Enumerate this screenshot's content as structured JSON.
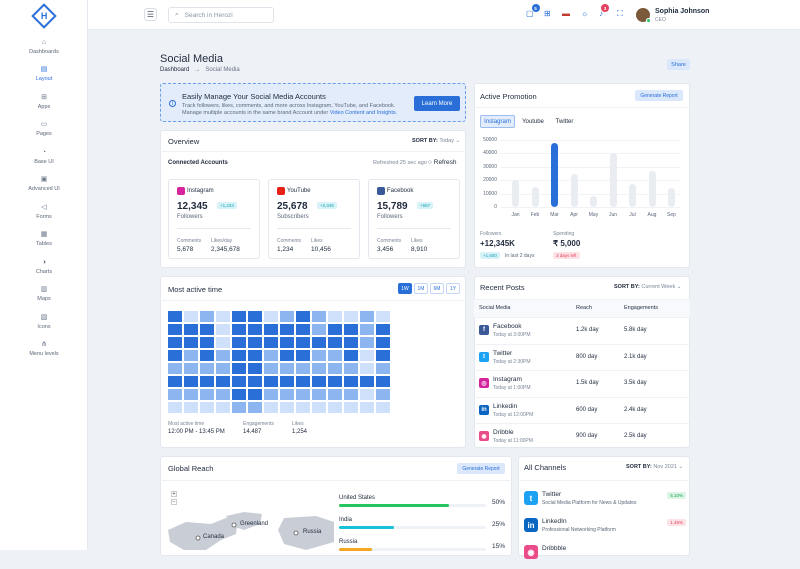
{
  "topbar": {
    "search_placeholder": "Search in Herozi",
    "cart_count": "5",
    "notif_count": "3",
    "user_name": "Sophia Johnson",
    "user_role": "CEO"
  },
  "sidebar": {
    "items": [
      {
        "label": "Dashboards",
        "icon": "home-icon",
        "glyph": "⌂"
      },
      {
        "label": "Layout",
        "icon": "layout-icon",
        "glyph": "▤",
        "active": true
      },
      {
        "label": "Apps",
        "icon": "apps-grid-icon",
        "glyph": "⊞"
      },
      {
        "label": "Pages",
        "icon": "pages-icon",
        "glyph": "▭"
      },
      {
        "label": "Base UI",
        "icon": "base-ui-icon",
        "glyph": "◔"
      },
      {
        "label": "Advanced UI",
        "icon": "advanced-ui-icon",
        "glyph": "▣"
      },
      {
        "label": "Forms",
        "icon": "forms-icon",
        "glyph": "◁"
      },
      {
        "label": "Tables",
        "icon": "tables-icon",
        "glyph": "▦"
      },
      {
        "label": "Charts",
        "icon": "charts-icon",
        "glyph": "◑"
      },
      {
        "label": "Maps",
        "icon": "maps-icon",
        "glyph": "▥"
      },
      {
        "label": "Icons",
        "icon": "icons-icon",
        "glyph": "▧"
      },
      {
        "label": "Menu levels",
        "icon": "menu-levels-icon",
        "glyph": "⋔"
      }
    ]
  },
  "page": {
    "title": "Social Media",
    "crumb_home": "Dashboard",
    "crumb_sep": "→",
    "crumb_current": "Social Media",
    "share": "Share"
  },
  "alert": {
    "title": "Easily Manage Your Social Media Accounts",
    "text": "Track followers, likes, comments, and more across Instagram, YouTube, and Facebook. Manage multiple accounts in the same brand Account under",
    "link": "Video Content and Insights.",
    "button": "Learn More"
  },
  "overview": {
    "title": "Overview",
    "sort_label": "SORT BY:",
    "sort_value": "Today",
    "connected": "Connected Accounts",
    "refreshed": "Refreshed 25 sec ago",
    "refresh": "Refresh",
    "accounts": [
      {
        "name": "Instagram",
        "value": "12,345",
        "pct": "+1,234",
        "label": "Followers",
        "k1": "Comments",
        "v1": "5,678",
        "k2": "Likes/day",
        "v2": "2,345,678",
        "color": "#d6249f"
      },
      {
        "name": "YouTube",
        "value": "25,678",
        "pct": "+2,345",
        "label": "Subscribers",
        "k1": "Comments",
        "v1": "1,234",
        "k2": "Likes",
        "v2": "10,456",
        "color": "#e62117"
      },
      {
        "name": "Facebook",
        "value": "15,789",
        "pct": "+567",
        "label": "Followers",
        "k1": "Comments",
        "v1": "3,456",
        "k2": "Likes",
        "v2": "8,910",
        "color": "#3b5998"
      }
    ]
  },
  "active_time": {
    "title": "Most active time",
    "segments": [
      "1W",
      "1M",
      "6M",
      "1Y"
    ],
    "k1": "Most active time",
    "v1": "12:00 PM - 13:45 PM",
    "k2": "Engagements",
    "v2": "14,487",
    "k3": "Likes",
    "v3": "1,254",
    "grid": [
      [
        3,
        1,
        2,
        1,
        3,
        3,
        1,
        2,
        3,
        2,
        1,
        1,
        2,
        1
      ],
      [
        3,
        3,
        3,
        1,
        3,
        3,
        3,
        3,
        3,
        2,
        3,
        3,
        2,
        3
      ],
      [
        3,
        3,
        3,
        1,
        3,
        3,
        3,
        3,
        3,
        3,
        3,
        3,
        2,
        3
      ],
      [
        3,
        2,
        3,
        2,
        3,
        3,
        2,
        3,
        3,
        2,
        2,
        3,
        1,
        3
      ],
      [
        2,
        2,
        2,
        2,
        3,
        3,
        2,
        2,
        2,
        2,
        2,
        2,
        1,
        2
      ],
      [
        3,
        3,
        3,
        3,
        3,
        3,
        3,
        3,
        3,
        3,
        3,
        3,
        3,
        3
      ],
      [
        2,
        2,
        2,
        2,
        3,
        3,
        2,
        2,
        2,
        2,
        2,
        2,
        1,
        2
      ],
      [
        1,
        1,
        1,
        1,
        2,
        2,
        1,
        1,
        1,
        1,
        1,
        1,
        1,
        1
      ]
    ]
  },
  "promotion": {
    "title": "Active Promotion",
    "button": "Generate Report",
    "tabs": [
      "Instagram",
      "Youtube",
      "Twitter"
    ],
    "k1": "Followers",
    "v1": "+12,345K",
    "b1": "+1,600",
    "s1": "In last 2 days",
    "k2": "Spending",
    "v2": "₹ 5,000",
    "b2": "3 days left"
  },
  "chart_data": {
    "type": "bar",
    "categories": [
      "Jan",
      "Feb",
      "Mar",
      "Apr",
      "May",
      "Jun",
      "Jul",
      "Aug",
      "Sep"
    ],
    "values": [
      20000,
      15000,
      48000,
      25000,
      8000,
      40000,
      17000,
      27000,
      14000
    ],
    "ylim": [
      0,
      50000
    ],
    "yticks": [
      "0",
      "10000",
      "20000",
      "30000",
      "40000",
      "50000"
    ],
    "highlight": "Mar"
  },
  "recent": {
    "title": "Recent Posts",
    "sort_label": "SORT BY:",
    "sort_value": "Current Week",
    "h1": "Social Media",
    "h2": "Reach",
    "h3": "Engagements",
    "rows": [
      {
        "name": "Facebook",
        "time": "Today at 3:00PM",
        "reach": "1.2k day",
        "eng": "5.8k day",
        "color": "#3b5998",
        "glyph": "f"
      },
      {
        "name": "Twitter",
        "time": "Today at 2:30PM",
        "reach": "800 day",
        "eng": "2.1k day",
        "color": "#1da1f2",
        "glyph": "t"
      },
      {
        "name": "Instagram",
        "time": "Today at 1:00PM",
        "reach": "1.5k day",
        "eng": "3.5k day",
        "color": "#d6249f",
        "glyph": "◎"
      },
      {
        "name": "Linkedin",
        "time": "Today at 12:00PM",
        "reach": "600 day",
        "eng": "2.4k day",
        "color": "#0a66c2",
        "glyph": "in"
      },
      {
        "name": "Dribble",
        "time": "Today at 11:00PM",
        "reach": "900 day",
        "eng": "2.5k day",
        "color": "#ea4c89",
        "glyph": "◉"
      }
    ]
  },
  "reach": {
    "title": "Global Reach",
    "button": "Generate Report",
    "map_labels": [
      "Greenland",
      "Canada",
      "Russia"
    ],
    "countries": [
      {
        "name": "United States",
        "pct": "50%",
        "value": 50,
        "color": "#22c55e"
      },
      {
        "name": "India",
        "pct": "25%",
        "value": 25,
        "color": "#17c1d8"
      },
      {
        "name": "Russia",
        "pct": "15%",
        "value": 15,
        "color": "#f5a623"
      }
    ]
  },
  "channels": {
    "title": "All Channels",
    "sort_label": "SORT BY:",
    "sort_value": "Nov 2021",
    "items": [
      {
        "name": "Twitter",
        "desc": "Social Media Platform for News & Updates",
        "badge": "5.10%",
        "color": "#1da1f2",
        "glyph": "t",
        "up": true
      },
      {
        "name": "LinkedIn",
        "desc": "Professional Networking Platform",
        "badge": "1.45%",
        "color": "#0a66c2",
        "glyph": "in",
        "up": false
      },
      {
        "name": "Dribbble",
        "desc": "",
        "badge": "",
        "color": "#ea4c89",
        "glyph": "◉",
        "up": true
      }
    ]
  }
}
